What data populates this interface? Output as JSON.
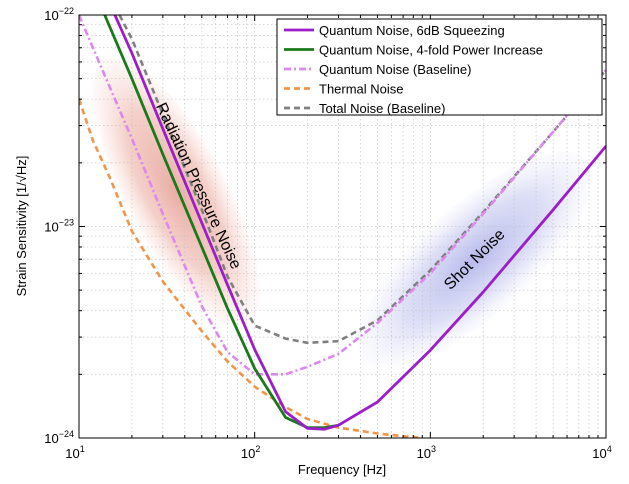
{
  "chart_data": {
    "type": "line",
    "title": "",
    "xlabel": "Frequency [Hz]",
    "ylabel": "Strain Sensitivity [1/√Hz]",
    "xscale": "log",
    "yscale": "log",
    "xlim": [
      10,
      10000
    ],
    "ylim": [
      1e-24,
      1e-22
    ],
    "grid": true,
    "legend_position": "top-right",
    "x_ticks": [
      {
        "base": "10",
        "exp": "1",
        "value": 10
      },
      {
        "base": "10",
        "exp": "2",
        "value": 100
      },
      {
        "base": "10",
        "exp": "3",
        "value": 1000
      },
      {
        "base": "10",
        "exp": "4",
        "value": 10000
      }
    ],
    "y_ticks": [
      {
        "base": "10",
        "exp": "−24",
        "value": 1e-24
      },
      {
        "base": "10",
        "exp": "−23",
        "value": 1e-23
      },
      {
        "base": "10",
        "exp": "−22",
        "value": 1e-22
      }
    ],
    "series": [
      {
        "name": "Quantum Noise, 6dB Squeezing",
        "color": "#9b1ec8",
        "style": "solid",
        "x": [
          16,
          20,
          30,
          50,
          70,
          100,
          150,
          200,
          250,
          300,
          500,
          1000,
          2000,
          5000,
          10000
        ],
        "y": [
          1e-22,
          6.6e-23,
          2.9e-23,
          1.04e-23,
          5.3e-24,
          2.62e-24,
          1.33e-24,
          1.11e-24,
          1.1e-24,
          1.15e-24,
          1.48e-24,
          2.6e-24,
          4.9e-24,
          1.2e-23,
          2.4e-23
        ]
      },
      {
        "name": "Quantum Noise, 4-fold Power Increase",
        "color": "#1a7a1a",
        "style": "solid",
        "x": [
          14,
          20,
          30,
          50,
          70,
          100,
          150,
          200,
          250,
          300
        ],
        "y": [
          1e-22,
          5e-23,
          2.2e-23,
          8e-24,
          4.1e-24,
          2.13e-24,
          1.25e-24,
          1.12e-24,
          1.12e-24,
          1.15e-24
        ]
      },
      {
        "name": "Quantum Noise (Baseline)",
        "color": "#dd88ee",
        "style": "dashdot",
        "x": [
          10,
          12,
          20,
          30,
          50,
          70,
          100,
          150,
          200,
          300,
          500,
          1000,
          2000,
          5000,
          10000
        ],
        "y": [
          1e-22,
          7e-23,
          2.6e-23,
          1.15e-23,
          4.2e-24,
          2.55e-24,
          2e-24,
          2e-24,
          2.17e-24,
          2.5e-24,
          3.5e-24,
          6e-24,
          1.15e-23,
          2.8e-23,
          5.5e-23
        ]
      },
      {
        "name": "Thermal Noise",
        "color": "#f0954a",
        "style": "dashed",
        "x": [
          10,
          12,
          15,
          20,
          30,
          50,
          70,
          100,
          150,
          200,
          300,
          500,
          700,
          900
        ],
        "y": [
          4e-23,
          2.55e-23,
          1.7e-23,
          9.5e-24,
          5.5e-24,
          3.2e-24,
          2.3e-24,
          1.75e-24,
          1.4e-24,
          1.23e-24,
          1.12e-24,
          1.05e-24,
          1.02e-24,
          1e-24
        ]
      },
      {
        "name": "Total Noise (Baseline)",
        "color": "#808080",
        "style": "dashed",
        "x": [
          17,
          20,
          30,
          50,
          70,
          100,
          150,
          200,
          300,
          500,
          1000,
          2000,
          5000,
          10000
        ],
        "y": [
          1e-22,
          7.7e-23,
          3.4e-23,
          1.2e-23,
          5.8e-24,
          3.4e-24,
          2.95e-24,
          2.82e-24,
          2.87e-24,
          3.6e-24,
          6.2e-24,
          1.17e-23,
          2.8e-23,
          5.5e-23
        ]
      }
    ],
    "annotations": [
      {
        "text": "Radiation Pressure Noise",
        "x": 32,
        "y": 1.6e-23,
        "rotation_deg": 65
      },
      {
        "text": "Shot Noise",
        "x": 1250,
        "y": 6e-24,
        "rotation_deg": -45
      }
    ],
    "shaded_regions": [
      {
        "label": "radiation-pressure-region",
        "color": "#dc7060",
        "center_x": 30,
        "center_y": 2.6e-23
      },
      {
        "label": "shot-noise-region",
        "color": "#8a90e0",
        "center_x": 1100,
        "center_y": 6e-24
      }
    ]
  }
}
